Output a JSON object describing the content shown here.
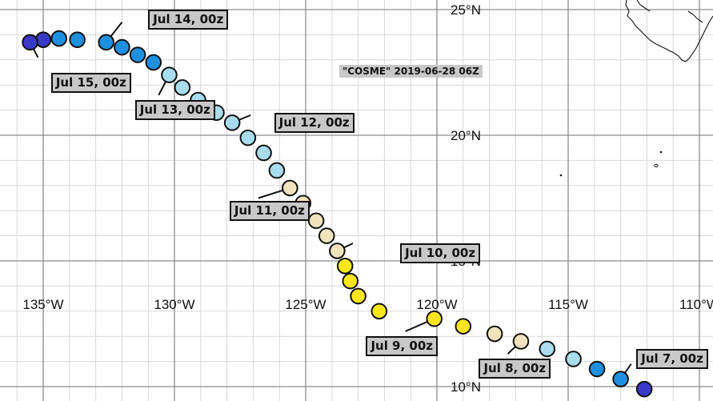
{
  "map": {
    "title": "\"COSME\" 2019-06-28 06Z",
    "lon_labels": [
      "135°W",
      "130°W",
      "125°W",
      "120°W",
      "115°W",
      "110°W"
    ],
    "lat_labels": [
      "25°N",
      "20°N",
      "15°N",
      "10°N"
    ],
    "track_points": [
      {
        "lon": -112.1,
        "lat": 9.9,
        "color": "#3a3ac8"
      },
      {
        "lon": -113.0,
        "lat": 10.3,
        "color": "#1f90e0"
      },
      {
        "lon": -113.9,
        "lat": 10.7,
        "color": "#1f90e0"
      },
      {
        "lon": -114.8,
        "lat": 11.1,
        "color": "#a9dcec"
      },
      {
        "lon": -115.8,
        "lat": 11.5,
        "color": "#a9dcec"
      },
      {
        "lon": -116.8,
        "lat": 11.8,
        "color": "#f1e3bd"
      },
      {
        "lon": -117.8,
        "lat": 12.1,
        "color": "#f1e3bd"
      },
      {
        "lon": -119.0,
        "lat": 12.4,
        "color": "#ffe61a"
      },
      {
        "lon": -120.1,
        "lat": 12.7,
        "color": "#ffe61a"
      },
      {
        "lon": -122.2,
        "lat": 13.0,
        "color": "#ffe61a"
      },
      {
        "lon": -123.0,
        "lat": 13.6,
        "color": "#ffe61a"
      },
      {
        "lon": -123.3,
        "lat": 14.2,
        "color": "#ffe61a"
      },
      {
        "lon": -123.5,
        "lat": 14.8,
        "color": "#ffe61a"
      },
      {
        "lon": -123.8,
        "lat": 15.4,
        "color": "#f1e3bd"
      },
      {
        "lon": -124.2,
        "lat": 16.0,
        "color": "#f1e3bd"
      },
      {
        "lon": -124.6,
        "lat": 16.6,
        "color": "#f1e3bd"
      },
      {
        "lon": -125.1,
        "lat": 17.3,
        "color": "#f1e3bd"
      },
      {
        "lon": -125.6,
        "lat": 17.9,
        "color": "#f1e3bd"
      },
      {
        "lon": -126.1,
        "lat": 18.6,
        "color": "#a9dcec"
      },
      {
        "lon": -126.6,
        "lat": 19.3,
        "color": "#a9dcec"
      },
      {
        "lon": -127.2,
        "lat": 19.9,
        "color": "#a9dcec"
      },
      {
        "lon": -127.8,
        "lat": 20.5,
        "color": "#a9dcec"
      },
      {
        "lon": -128.4,
        "lat": 20.9,
        "color": "#a9dcec"
      },
      {
        "lon": -129.1,
        "lat": 21.4,
        "color": "#a9dcec"
      },
      {
        "lon": -129.7,
        "lat": 21.9,
        "color": "#a9dcec"
      },
      {
        "lon": -130.2,
        "lat": 22.4,
        "color": "#a9dcec"
      },
      {
        "lon": -130.8,
        "lat": 22.9,
        "color": "#1f90e0"
      },
      {
        "lon": -131.4,
        "lat": 23.2,
        "color": "#1f90e0"
      },
      {
        "lon": -132.0,
        "lat": 23.5,
        "color": "#1f90e0"
      },
      {
        "lon": -132.6,
        "lat": 23.7,
        "color": "#1f90e0"
      },
      {
        "lon": -133.7,
        "lat": 23.8,
        "color": "#1f90e0"
      },
      {
        "lon": -134.4,
        "lat": 23.85,
        "color": "#1f90e0"
      },
      {
        "lon": -135.0,
        "lat": 23.8,
        "color": "#3a3ac8"
      },
      {
        "lon": -135.5,
        "lat": 23.7,
        "color": "#3a3ac8"
      }
    ],
    "time_labels": [
      {
        "text": "Jul 7, 00z",
        "point": 1,
        "box_lon": -112.4,
        "box_lat": 11.5,
        "leader_lon": -112.6,
        "leader_lat": 10.9
      },
      {
        "text": "Jul 8, 00z",
        "point": 5,
        "box_lon": -118.4,
        "box_lat": 11.1,
        "leader_lon": -117.3,
        "leader_lat": 11.3
      },
      {
        "text": "Jul 9, 00z",
        "point": 8,
        "box_lon": -122.7,
        "box_lat": 12.0,
        "leader_lon": -121.2,
        "leader_lat": 12.2
      },
      {
        "text": "Jul 10, 00z",
        "point": 13,
        "box_lon": -121.4,
        "box_lat": 15.7,
        "leader_lon": -123.2,
        "leader_lat": 15.7
      },
      {
        "text": "Jul 11, 00z",
        "point": 17,
        "box_lon": -127.9,
        "box_lat": 17.4,
        "leader_lon": -126.8,
        "leader_lat": 17.5
      },
      {
        "text": "Jul 12, 00z",
        "point": 21,
        "box_lon": -126.2,
        "box_lat": 20.9,
        "leader_lon": -127.1,
        "leader_lat": 20.8
      },
      {
        "text": "Jul 13, 00z",
        "point": 25,
        "box_lon": -131.5,
        "box_lat": 21.4,
        "leader_lon": -130.6,
        "leader_lat": 21.6
      },
      {
        "text": "Jul 14, 00z",
        "point": 29,
        "box_lon": -131.0,
        "box_lat": 25.0,
        "leader_lon": -132.0,
        "leader_lat": 24.5
      },
      {
        "text": "Jul 15, 00z",
        "point": 33,
        "box_lon": -134.7,
        "box_lat": 22.5,
        "leader_lon": -135.2,
        "leader_lat": 23.1
      }
    ]
  }
}
